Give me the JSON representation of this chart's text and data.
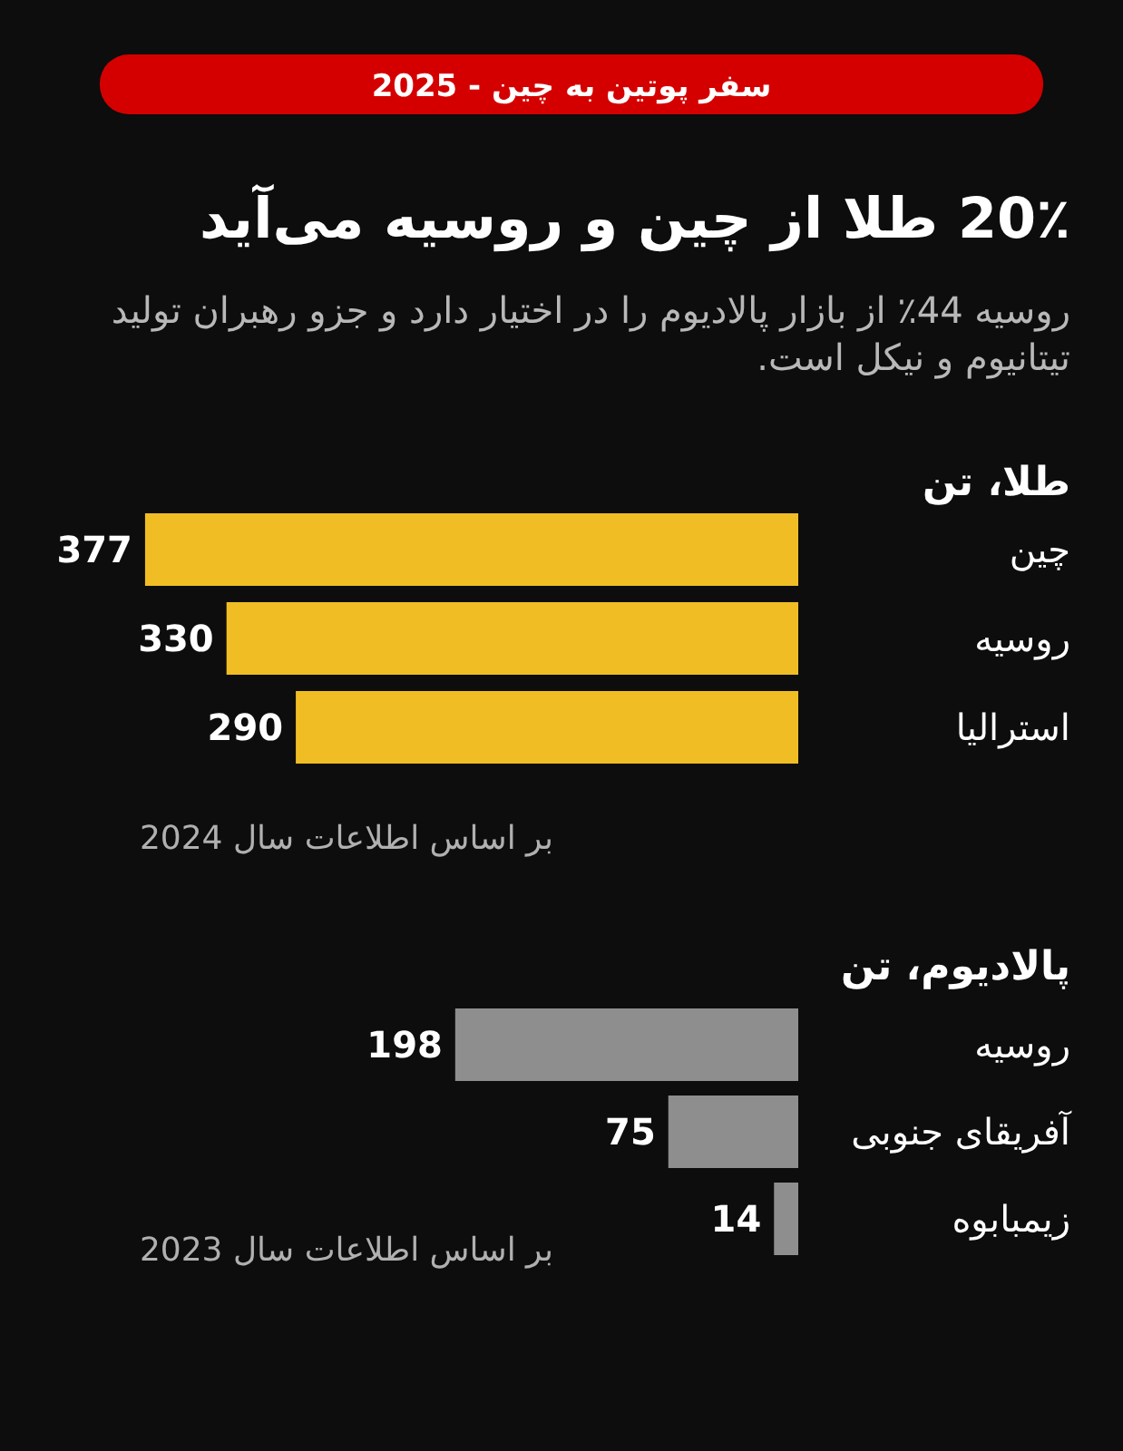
{
  "chart_data": [
    {
      "type": "other",
      "title": "20٪ طلا از چین و روسیه می‌آید",
      "subtitle": "روسیه 44٪ از بازار پالادیوم را در اختیار دارد و جزو رهبران تولید تیتانیوم و نیکل است.",
      "annotations": [
        "سفر پوتین به چین - 2025"
      ]
    },
    {
      "type": "bar",
      "orientation": "horizontal",
      "title": "طلا، تن",
      "categories": [
        "چین",
        "روسیه",
        "استرالیا"
      ],
      "values": [
        377,
        330,
        290
      ],
      "color": "#f0be24",
      "data_labels": true,
      "annotations": [
        "بر اساس اطلاعات سال 2024"
      ]
    },
    {
      "type": "bar",
      "orientation": "horizontal",
      "title": "پالادیوم، تن",
      "categories": [
        "روسیه",
        "آفریقای جنوبی",
        "زیمبابوه"
      ],
      "values": [
        198,
        75,
        14
      ],
      "color": "#8e8e8e",
      "data_labels": true,
      "annotations": [
        "بر اساس اطلاعات سال 2023"
      ]
    }
  ]
}
